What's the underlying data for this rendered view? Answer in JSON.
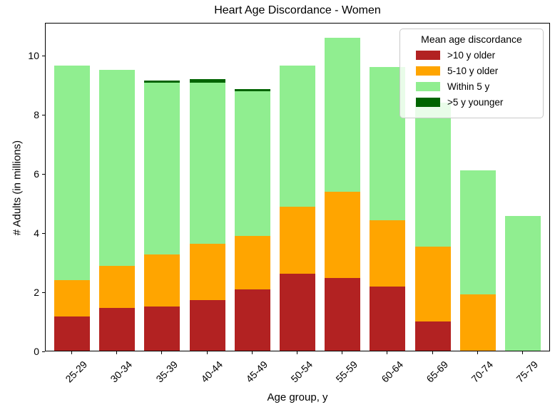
{
  "figure": {
    "title": "Heart Age Discordance - Women",
    "xlabel": "Age group, y",
    "ylabel": "# Adults (in millions)"
  },
  "legend": {
    "title": "Mean age discordance",
    "entries": [
      {
        "label": ">10 y older",
        "color": "#b22222"
      },
      {
        "label": "5-10 y older",
        "color": "#ffa500"
      },
      {
        "label": "Within 5 y",
        "color": "#90ee90"
      },
      {
        "label": ">5 y younger",
        "color": "#006400"
      }
    ]
  },
  "chart_data": {
    "type": "bar",
    "stacked": true,
    "title": "Heart Age Discordance - Women",
    "xlabel": "Age group, y",
    "ylabel": "# Adults (in millions)",
    "categories": [
      "25-29",
      "30-34",
      "35-39",
      "40-44",
      "45-49",
      "50-54",
      "55-59",
      "60-64",
      "65-69",
      "70-74",
      "75-79"
    ],
    "series": [
      {
        "name": ">10 y older",
        "color": "#b22222",
        "values": [
          1.16,
          1.45,
          1.5,
          1.72,
          2.08,
          2.6,
          2.45,
          2.17,
          1.0,
          0,
          0
        ]
      },
      {
        "name": "5-10 y older",
        "color": "#ffa500",
        "values": [
          1.24,
          1.43,
          1.76,
          1.91,
          1.81,
          2.28,
          2.93,
          2.24,
          2.53,
          1.9,
          0
        ]
      },
      {
        "name": "Within 5 y",
        "color": "#90ee90",
        "values": [
          7.25,
          6.62,
          5.81,
          5.45,
          4.88,
          4.76,
          5.2,
          5.2,
          4.87,
          4.21,
          4.57
        ]
      },
      {
        "name": ">5 y younger",
        "color": "#006400",
        "values": [
          0,
          0,
          0.08,
          0.1,
          0.09,
          0,
          0,
          0,
          0,
          0,
          0
        ]
      }
    ],
    "totals": [
      9.65,
      9.5,
      9.15,
      9.18,
      8.86,
      9.64,
      10.58,
      9.61,
      8.4,
      6.11,
      4.57
    ],
    "yticks": [
      0,
      2,
      4,
      6,
      8,
      10
    ],
    "ylim": [
      0,
      11.12
    ],
    "grid": false,
    "legend_position": "upper right"
  }
}
